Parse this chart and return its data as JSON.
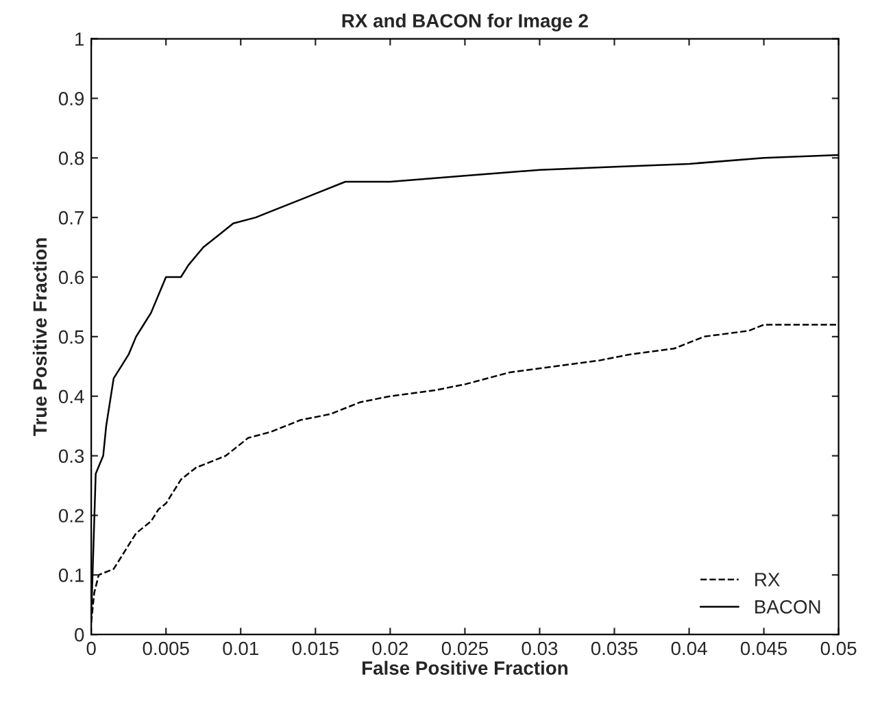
{
  "chart_data": {
    "type": "line",
    "title": "RX and BACON for Image 2",
    "xlabel": "False Positive Fraction",
    "ylabel": "True Positive Fraction",
    "xlim": [
      0,
      0.05
    ],
    "ylim": [
      0,
      1
    ],
    "xticks": [
      0,
      0.005,
      0.01,
      0.015,
      0.02,
      0.025,
      0.03,
      0.035,
      0.04,
      0.045,
      0.05
    ],
    "yticks": [
      0,
      0.1,
      0.2,
      0.3,
      0.4,
      0.5,
      0.6,
      0.7,
      0.8,
      0.9,
      1
    ],
    "legend": "bottom right",
    "grid": false,
    "series": [
      {
        "name": "RX",
        "color": "#000000",
        "line_style": "dashed",
        "x": [
          0,
          0.0002,
          0.0005,
          0.0015,
          0.002,
          0.003,
          0.004,
          0.0045,
          0.005,
          0.006,
          0.007,
          0.008,
          0.009,
          0.0105,
          0.012,
          0.014,
          0.016,
          0.018,
          0.02,
          0.023,
          0.025,
          0.028,
          0.031,
          0.034,
          0.036,
          0.039,
          0.041,
          0.044,
          0.045,
          0.05
        ],
        "values": [
          0.02,
          0.07,
          0.1,
          0.11,
          0.13,
          0.17,
          0.19,
          0.21,
          0.22,
          0.26,
          0.28,
          0.29,
          0.3,
          0.33,
          0.34,
          0.36,
          0.37,
          0.39,
          0.4,
          0.41,
          0.42,
          0.44,
          0.45,
          0.46,
          0.47,
          0.48,
          0.5,
          0.51,
          0.52,
          0.52
        ]
      },
      {
        "name": "BACON",
        "color": "#000000",
        "line_style": "solid",
        "x": [
          0,
          0.0003,
          0.0008,
          0.001,
          0.0015,
          0.002,
          0.0025,
          0.003,
          0.0035,
          0.004,
          0.0045,
          0.005,
          0.006,
          0.0065,
          0.0075,
          0.0085,
          0.0095,
          0.011,
          0.012,
          0.014,
          0.015,
          0.017,
          0.02,
          0.025,
          0.03,
          0.035,
          0.04,
          0.045,
          0.05
        ],
        "values": [
          0.03,
          0.27,
          0.3,
          0.35,
          0.43,
          0.45,
          0.47,
          0.5,
          0.52,
          0.54,
          0.57,
          0.6,
          0.6,
          0.62,
          0.65,
          0.67,
          0.69,
          0.7,
          0.71,
          0.73,
          0.74,
          0.76,
          0.76,
          0.77,
          0.78,
          0.785,
          0.79,
          0.8,
          0.805
        ]
      }
    ]
  }
}
